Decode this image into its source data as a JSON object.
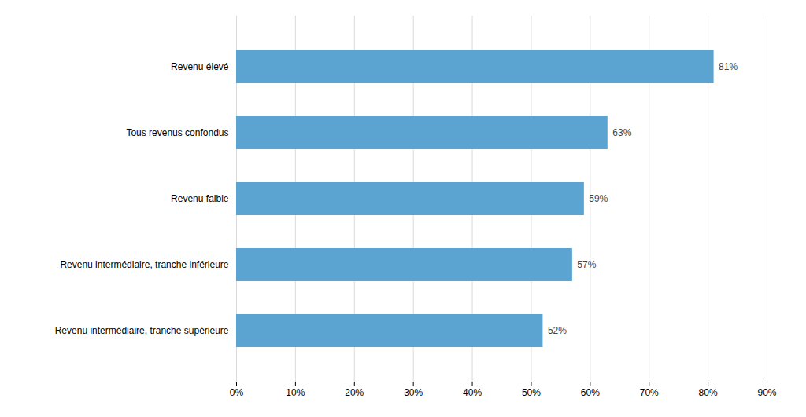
{
  "chart_data": {
    "type": "bar",
    "orientation": "horizontal",
    "categories": [
      "Revenu intermédiaire, tranche supérieure",
      "Revenu intermédiaire, tranche inférieure",
      "Revenu faible",
      "Tous revenus confondus",
      "Revenu élevé"
    ],
    "values": [
      52,
      57,
      59,
      63,
      81
    ],
    "value_labels": [
      "52%",
      "57%",
      "59%",
      "63%",
      "81%"
    ],
    "data_labels": true,
    "color": "#5ba3d0",
    "xlim": [
      0,
      90
    ],
    "xticks": [
      {
        "value": 0,
        "label": "0%"
      },
      {
        "value": 10,
        "label": "10%"
      },
      {
        "value": 20,
        "label": "20%"
      },
      {
        "value": 30,
        "label": "30%"
      },
      {
        "value": 40,
        "label": "40%"
      },
      {
        "value": 50,
        "label": "50%"
      },
      {
        "value": 60,
        "label": "60%"
      },
      {
        "value": 70,
        "label": "70%"
      },
      {
        "value": 80,
        "label": "80%"
      },
      {
        "value": 90,
        "label": "90%"
      }
    ],
    "grid": true
  }
}
